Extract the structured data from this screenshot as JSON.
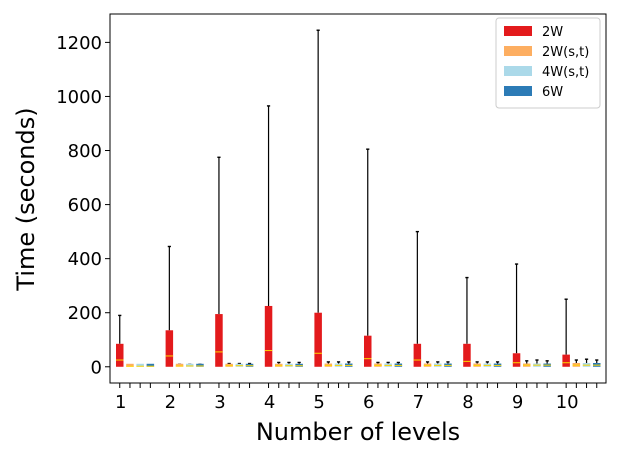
{
  "chart_data": {
    "type": "boxplot",
    "xlabel": "Number of levels",
    "ylabel": "Time (seconds)",
    "ylim": [
      -60,
      1305
    ],
    "yticks": [
      0,
      200,
      400,
      600,
      800,
      1000,
      1200
    ],
    "categories": [
      "1",
      "2",
      "3",
      "4",
      "5",
      "6",
      "7",
      "8",
      "9",
      "10"
    ],
    "legend_position": "top-right",
    "colors": {
      "2W": "#e31a1c",
      "2W(s,t)": "#fdae61",
      "4W(s,t)": "#abd9e9",
      "6W": "#2c7bb6",
      "median": "#ffd700"
    },
    "series": [
      {
        "name": "2W",
        "boxes": [
          {
            "q1": 0,
            "median": 25,
            "q3": 85,
            "whisker_high": 190
          },
          {
            "q1": 0,
            "median": 40,
            "q3": 135,
            "whisker_high": 445
          },
          {
            "q1": 0,
            "median": 55,
            "q3": 195,
            "whisker_high": 775
          },
          {
            "q1": 0,
            "median": 60,
            "q3": 225,
            "whisker_high": 965
          },
          {
            "q1": 0,
            "median": 50,
            "q3": 200,
            "whisker_high": 1245
          },
          {
            "q1": 0,
            "median": 30,
            "q3": 115,
            "whisker_high": 805
          },
          {
            "q1": 0,
            "median": 25,
            "q3": 85,
            "whisker_high": 500
          },
          {
            "q1": 0,
            "median": 20,
            "q3": 85,
            "whisker_high": 330
          },
          {
            "q1": 0,
            "median": 15,
            "q3": 50,
            "whisker_high": 380
          },
          {
            "q1": 0,
            "median": 15,
            "q3": 45,
            "whisker_high": 250
          }
        ]
      },
      {
        "name": "2W(s,t)",
        "boxes": [
          {
            "q1": 0,
            "median": 2,
            "q3": 5,
            "whisker_high": 6
          },
          {
            "q1": 0,
            "median": 3,
            "q3": 7,
            "whisker_high": 9
          },
          {
            "q1": 0,
            "median": 4,
            "q3": 9,
            "whisker_high": 12
          },
          {
            "q1": 0,
            "median": 4,
            "q3": 11,
            "whisker_high": 16
          },
          {
            "q1": 0,
            "median": 5,
            "q3": 12,
            "whisker_high": 18
          },
          {
            "q1": 0,
            "median": 5,
            "q3": 12,
            "whisker_high": 16
          },
          {
            "q1": 0,
            "median": 5,
            "q3": 12,
            "whisker_high": 18
          },
          {
            "q1": 0,
            "median": 5,
            "q3": 12,
            "whisker_high": 18
          },
          {
            "q1": 0,
            "median": 6,
            "q3": 12,
            "whisker_high": 22
          },
          {
            "q1": 0,
            "median": 6,
            "q3": 14,
            "whisker_high": 25
          }
        ]
      },
      {
        "name": "4W(s,t)",
        "boxes": [
          {
            "q1": 0,
            "median": 2,
            "q3": 5,
            "whisker_high": 6
          },
          {
            "q1": 0,
            "median": 3,
            "q3": 7,
            "whisker_high": 9
          },
          {
            "q1": 0,
            "median": 4,
            "q3": 9,
            "whisker_high": 12
          },
          {
            "q1": 0,
            "median": 4,
            "q3": 11,
            "whisker_high": 16
          },
          {
            "q1": 0,
            "median": 5,
            "q3": 12,
            "whisker_high": 18
          },
          {
            "q1": 0,
            "median": 5,
            "q3": 12,
            "whisker_high": 16
          },
          {
            "q1": 0,
            "median": 5,
            "q3": 12,
            "whisker_high": 18
          },
          {
            "q1": 0,
            "median": 5,
            "q3": 12,
            "whisker_high": 18
          },
          {
            "q1": 0,
            "median": 6,
            "q3": 12,
            "whisker_high": 25
          },
          {
            "q1": 0,
            "median": 6,
            "q3": 14,
            "whisker_high": 28
          }
        ]
      },
      {
        "name": "6W",
        "boxes": [
          {
            "q1": 0,
            "median": 2,
            "q3": 5,
            "whisker_high": 6
          },
          {
            "q1": 0,
            "median": 3,
            "q3": 7,
            "whisker_high": 9
          },
          {
            "q1": 0,
            "median": 4,
            "q3": 9,
            "whisker_high": 12
          },
          {
            "q1": 0,
            "median": 4,
            "q3": 11,
            "whisker_high": 16
          },
          {
            "q1": 0,
            "median": 5,
            "q3": 12,
            "whisker_high": 18
          },
          {
            "q1": 0,
            "median": 5,
            "q3": 12,
            "whisker_high": 16
          },
          {
            "q1": 0,
            "median": 5,
            "q3": 12,
            "whisker_high": 18
          },
          {
            "q1": 0,
            "median": 5,
            "q3": 12,
            "whisker_high": 18
          },
          {
            "q1": 0,
            "median": 6,
            "q3": 12,
            "whisker_high": 22
          },
          {
            "q1": 0,
            "median": 6,
            "q3": 14,
            "whisker_high": 25
          }
        ]
      }
    ]
  }
}
